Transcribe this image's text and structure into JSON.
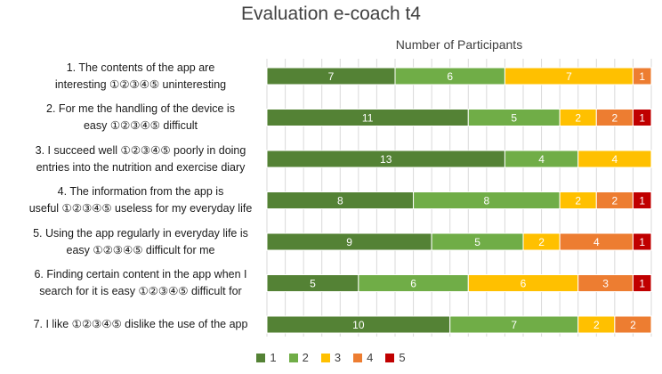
{
  "chart_data": {
    "type": "bar",
    "orientation": "horizontal",
    "stacked": true,
    "title": "Evaluation e-coach t4",
    "xlabel": "Number of Participants",
    "xlim": [
      0,
      21
    ],
    "grid": true,
    "legend_position": "bottom",
    "categories": [
      [
        "1. The contents of the app are",
        "interesting ①②③④⑤ uninteresting"
      ],
      [
        "2. For me the handling of the device is",
        "easy ①②③④⑤ difficult"
      ],
      [
        "3. I succeed well ①②③④⑤ poorly in doing",
        "entries into the nutrition and exercise diary"
      ],
      [
        "4. The information from the app is",
        "useful ①②③④⑤ useless for my everyday life"
      ],
      [
        "5. Using the app regularly in everyday life is",
        "easy ①②③④⑤ difficult for me"
      ],
      [
        "6. Finding certain content in the app when I",
        "search for it is easy ①②③④⑤ difficult for"
      ],
      [
        "7. I like ①②③④⑤ dislike the use of the app"
      ]
    ],
    "series": [
      {
        "name": "1",
        "color": "#548235",
        "values": [
          7,
          11,
          13,
          8,
          9,
          5,
          10
        ]
      },
      {
        "name": "2",
        "color": "#70ad47",
        "values": [
          6,
          5,
          4,
          8,
          5,
          6,
          7
        ]
      },
      {
        "name": "3",
        "color": "#ffc000",
        "values": [
          7,
          2,
          4,
          2,
          2,
          6,
          2
        ]
      },
      {
        "name": "4",
        "color": "#ed7d31",
        "values": [
          1,
          2,
          0,
          2,
          4,
          3,
          2
        ]
      },
      {
        "name": "5",
        "color": "#c00000",
        "values": [
          0,
          1,
          0,
          1,
          1,
          1,
          0
        ]
      }
    ]
  }
}
